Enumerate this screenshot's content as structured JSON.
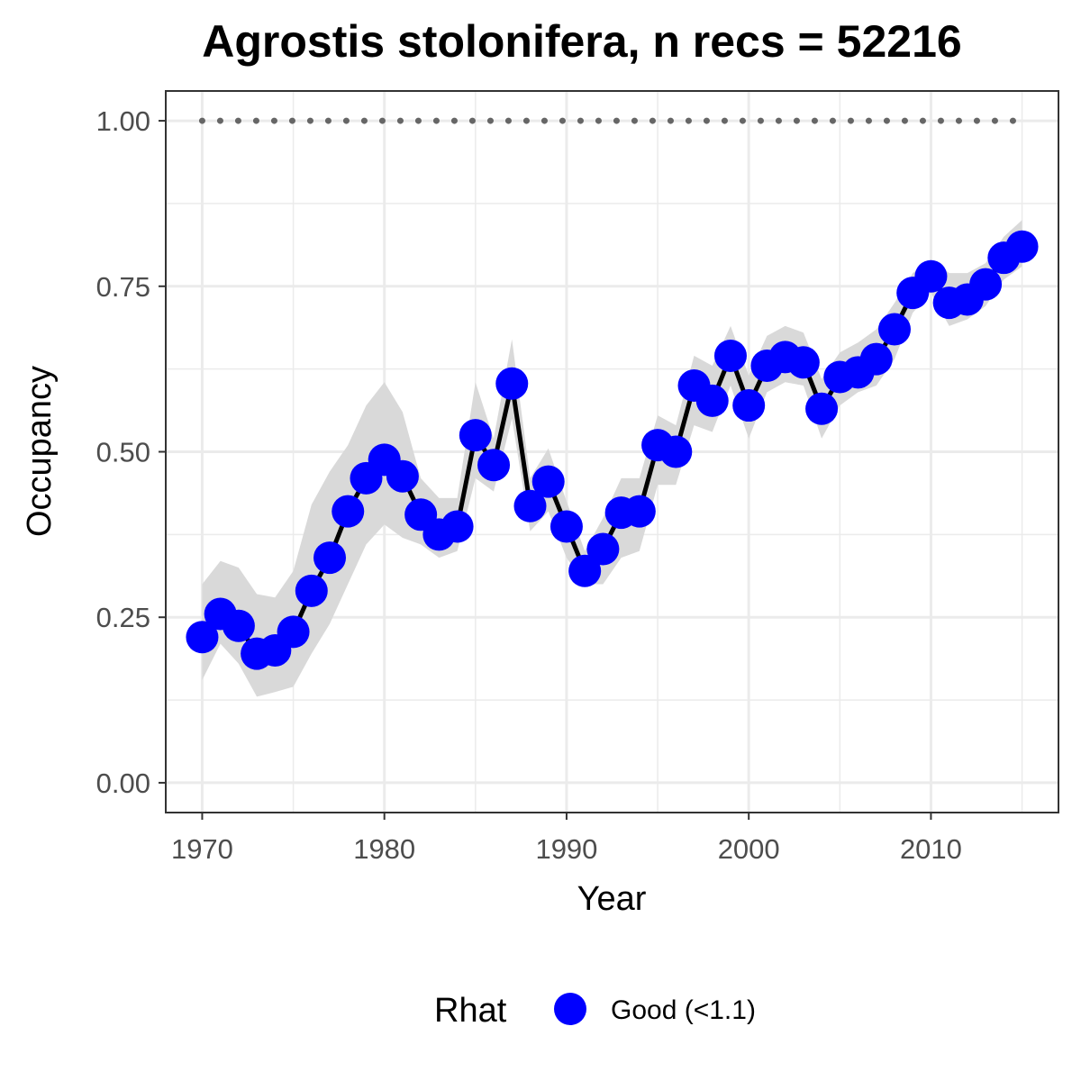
{
  "chart_data": {
    "type": "line",
    "title": "Agrostis stolonifera, n recs = 52216",
    "xlabel": "Year",
    "ylabel": "Occupancy",
    "xlim": [
      1968,
      2017
    ],
    "ylim": [
      -0.045,
      1.045
    ],
    "x_ticks": [
      1970,
      1980,
      1990,
      2000,
      2010
    ],
    "x_tick_labels": [
      "1970",
      "1980",
      "1990",
      "2000",
      "2010"
    ],
    "y_ticks": [
      0,
      0.25,
      0.5,
      0.75,
      1.0
    ],
    "y_tick_labels": [
      "0.00",
      "0.25",
      "0.50",
      "0.75",
      "1.00"
    ],
    "grid": true,
    "legend": {
      "position": "bottom",
      "title": "Rhat",
      "entries": [
        {
          "label": "Good (<1.1)",
          "color": "#0000ff"
        }
      ]
    },
    "colors": {
      "points": "#0000ff",
      "line": "#000000",
      "ribbon": "#d9d9d9",
      "reference": "#666666",
      "grid": "#ebebeb",
      "panel_border": "#333333"
    },
    "reference_line": {
      "y": 1.0,
      "style": "dotted"
    },
    "series": [
      {
        "x": [
          1970,
          1971,
          1972,
          1973,
          1974,
          1975,
          1976,
          1977,
          1978,
          1979,
          1980,
          1981,
          1982,
          1983,
          1984,
          1985,
          1986,
          1987,
          1988,
          1989,
          1990,
          1991,
          1992,
          1993,
          1994,
          1995,
          1996,
          1997,
          1998,
          1999,
          2000,
          2001,
          2002,
          2003,
          2004,
          2005,
          2006,
          2007,
          2008,
          2009,
          2010,
          2011,
          2012,
          2013,
          2014,
          2015
        ],
        "values": [
          0.22,
          0.255,
          0.237,
          0.195,
          0.2,
          0.228,
          0.29,
          0.34,
          0.41,
          0.46,
          0.488,
          0.463,
          0.405,
          0.375,
          0.387,
          0.525,
          0.48,
          0.603,
          0.418,
          0.455,
          0.387,
          0.32,
          0.353,
          0.408,
          0.41,
          0.51,
          0.5,
          0.6,
          0.577,
          0.645,
          0.57,
          0.63,
          0.643,
          0.635,
          0.565,
          0.613,
          0.62,
          0.64,
          0.685,
          0.74,
          0.765,
          0.725,
          0.73,
          0.753,
          0.793,
          0.81
        ],
        "lower": [
          0.155,
          0.21,
          0.18,
          0.13,
          0.137,
          0.145,
          0.195,
          0.24,
          0.3,
          0.36,
          0.39,
          0.37,
          0.36,
          0.34,
          0.35,
          0.46,
          0.44,
          0.55,
          0.38,
          0.41,
          0.34,
          0.3,
          0.3,
          0.34,
          0.35,
          0.45,
          0.45,
          0.54,
          0.53,
          0.6,
          0.52,
          0.59,
          0.605,
          0.6,
          0.52,
          0.57,
          0.59,
          0.6,
          0.64,
          0.71,
          0.74,
          0.69,
          0.7,
          0.72,
          0.76,
          0.78
        ],
        "upper": [
          0.3,
          0.335,
          0.325,
          0.285,
          0.28,
          0.32,
          0.42,
          0.47,
          0.51,
          0.57,
          0.605,
          0.56,
          0.46,
          0.43,
          0.43,
          0.605,
          0.52,
          0.67,
          0.46,
          0.505,
          0.425,
          0.35,
          0.4,
          0.46,
          0.46,
          0.555,
          0.54,
          0.645,
          0.63,
          0.69,
          0.615,
          0.675,
          0.69,
          0.68,
          0.61,
          0.65,
          0.665,
          0.685,
          0.725,
          0.77,
          0.79,
          0.77,
          0.77,
          0.785,
          0.825,
          0.85
        ]
      }
    ]
  }
}
